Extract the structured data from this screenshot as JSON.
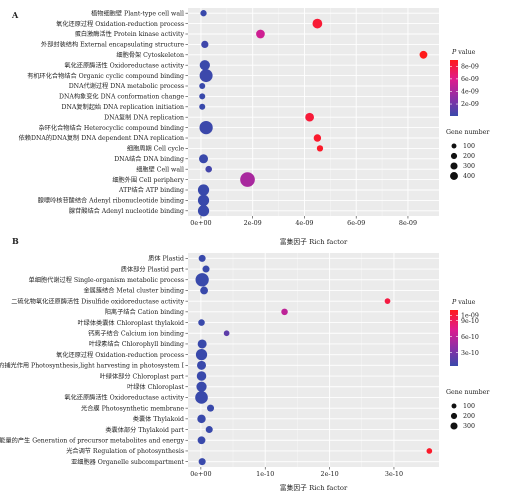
{
  "chart_data": [
    {
      "panel_label": "A",
      "type": "scatter",
      "xlabel": "富集因子 Rich factor",
      "xlim": [
        -5e-10,
        9.2e-09
      ],
      "x_ticks": [
        {
          "value": 0,
          "label": "0e+00"
        },
        {
          "value": 2e-09,
          "label": "2e-09"
        },
        {
          "value": 4e-09,
          "label": "4e-09"
        },
        {
          "value": 6e-09,
          "label": "6e-09"
        },
        {
          "value": 8e-09,
          "label": "8e-09"
        }
      ],
      "categories": [
        "植物细胞壁 Plant-type cell wall",
        "氧化还原过程 Oxidation-reduction process",
        "蛋白激酶活性 Protein kinase activity",
        "外部封装结构 External encapsulating structure",
        "细胞骨架 Cytoskeleton",
        "氧化还原酶活性 Oxidoreductase activity",
        "有机环化合物结合 Organic cyclic compound binding",
        "DNA代谢过程 DNA metabolic process",
        "DNA构象变化 DNA conformation change",
        "DNA复制起始 DNA replication initiation",
        "DNA复制 DNA replication",
        "杂环化合物结合 Heterocyclic compound binding",
        "依赖DNA的DNA复制 DNA dependent DNA replication",
        "细胞周期 Cell cycle",
        "DNA结合 DNA binding",
        "细胞壁 Cell wall",
        "细胞外围 Cell periphery",
        "ATP结合 ATP binding",
        "腺嘌呤核苷酸结合 Adenyl ribonucleotide binding",
        "腺苷酸结合 Adenyl nucleotide binding"
      ],
      "points": [
        {
          "x": 1e-10,
          "gene_number": 25,
          "p_value": 1e-10
        },
        {
          "x": 4.5e-09,
          "gene_number": 130,
          "p_value": 8.3e-09
        },
        {
          "x": 2.3e-09,
          "gene_number": 90,
          "p_value": 5.4e-09
        },
        {
          "x": 1.5e-10,
          "gene_number": 45,
          "p_value": 3e-10
        },
        {
          "x": 8.6e-09,
          "gene_number": 60,
          "p_value": 9e-09
        },
        {
          "x": 1.5e-10,
          "gene_number": 150,
          "p_value": 1.5e-10
        },
        {
          "x": 2e-10,
          "gene_number": 300,
          "p_value": 2e-10
        },
        {
          "x": 5e-11,
          "gene_number": 20,
          "p_value": 1e-10
        },
        {
          "x": 5e-11,
          "gene_number": 20,
          "p_value": 1e-10
        },
        {
          "x": 5e-11,
          "gene_number": 20,
          "p_value": 1e-10
        },
        {
          "x": 4.2e-09,
          "gene_number": 90,
          "p_value": 8.2e-09
        },
        {
          "x": 2e-10,
          "gene_number": 320,
          "p_value": 2e-10
        },
        {
          "x": 4.5e-09,
          "gene_number": 50,
          "p_value": 8.5e-09
        },
        {
          "x": 4.6e-09,
          "gene_number": 25,
          "p_value": 8.6e-09
        },
        {
          "x": 1e-10,
          "gene_number": 100,
          "p_value": 1.5e-10
        },
        {
          "x": 3e-10,
          "gene_number": 30,
          "p_value": 5e-10
        },
        {
          "x": 1.8e-09,
          "gene_number": 420,
          "p_value": 4e-09
        },
        {
          "x": 1e-10,
          "gene_number": 200,
          "p_value": 1e-10
        },
        {
          "x": 1e-10,
          "gene_number": 200,
          "p_value": 1e-10
        },
        {
          "x": 1e-10,
          "gene_number": 200,
          "p_value": 1e-10
        }
      ],
      "color_legend": {
        "title": "P value",
        "range": [
          1e-10,
          9e-09
        ],
        "ticks": [
          {
            "value": 2e-09,
            "label": "2e-09"
          },
          {
            "value": 4e-09,
            "label": "4e-09"
          },
          {
            "value": 6e-09,
            "label": "6e-09"
          },
          {
            "value": 8e-09,
            "label": "8e-09"
          }
        ],
        "low_color": "#3949ab",
        "high_color": "#ff1a1a"
      },
      "size_legend": {
        "title": "Gene number",
        "values": [
          100,
          200,
          300,
          400
        ]
      },
      "legend_position": "right",
      "grid": true
    },
    {
      "panel_label": "B",
      "type": "scatter",
      "xlabel": "富集因子 Rich factor",
      "xlim": [
        -2e-11,
        3.7e-10
      ],
      "x_ticks": [
        {
          "value": 0,
          "label": "0e+00"
        },
        {
          "value": 1e-10,
          "label": "1e-10"
        },
        {
          "value": 2e-10,
          "label": "2e-10"
        },
        {
          "value": 3e-10,
          "label": "3e-10"
        }
      ],
      "categories": [
        "质体 Plastid",
        "质体部分 Plastid part",
        "单细胞代谢过程 Single-organism metabolic process",
        "金属簇结合 Metal cluster binding",
        "二硫化物氧化还原酶活性 Disulfide oxidoreductase activity",
        "阳离子结合 Cation binding",
        "叶绿体类囊体 Chloroplast thylakoid",
        "钙离子结合 Calcium ion binding",
        "叶绿素结合 Chlorophyll binding",
        "氧化还原过程 Oxidation-reduction process",
        "光合作用,光系统Ⅰ的捕光作用 Photosynthesis,light harvesting in photosystem Ⅰ",
        "叶绿体部分 Chloroplast part",
        "叶绿体 Chloroplast",
        "氧化还原酶活性 Oxidoreductase activity",
        "光合膜 Photosynthetic membrane",
        "类囊体 Thylakoid",
        "类囊体部分 Thylakoid part",
        "前体代谢产物和能量的产生 Generation of precursor metabolites and energy",
        "光合调节 Regulation of photosynthesis",
        "亚细胞器 Organelle subcompartment"
      ],
      "points": [
        {
          "x": 2e-12,
          "gene_number": 40,
          "p_value": 5e-11
        },
        {
          "x": 8e-12,
          "gene_number": 40,
          "p_value": 5e-11
        },
        {
          "x": 2e-12,
          "gene_number": 320,
          "p_value": 5e-11
        },
        {
          "x": 5e-12,
          "gene_number": 60,
          "p_value": 5e-11
        },
        {
          "x": 2.9e-10,
          "gene_number": 15,
          "p_value": 9.8e-10
        },
        {
          "x": 1.3e-10,
          "gene_number": 30,
          "p_value": 6e-10
        },
        {
          "x": 1e-12,
          "gene_number": 30,
          "p_value": 5e-11
        },
        {
          "x": 4e-11,
          "gene_number": 15,
          "p_value": 2e-10
        },
        {
          "x": 2e-12,
          "gene_number": 100,
          "p_value": 5e-11
        },
        {
          "x": 1e-12,
          "gene_number": 200,
          "p_value": 5e-11
        },
        {
          "x": 1e-12,
          "gene_number": 100,
          "p_value": 5e-11
        },
        {
          "x": 1e-12,
          "gene_number": 120,
          "p_value": 5e-11
        },
        {
          "x": 1e-12,
          "gene_number": 150,
          "p_value": 5e-11
        },
        {
          "x": 1e-12,
          "gene_number": 280,
          "p_value": 5e-11
        },
        {
          "x": 1.5e-11,
          "gene_number": 40,
          "p_value": 5e-11
        },
        {
          "x": 1e-12,
          "gene_number": 80,
          "p_value": 5e-11
        },
        {
          "x": 1.3e-11,
          "gene_number": 40,
          "p_value": 5e-11
        },
        {
          "x": 1e-12,
          "gene_number": 60,
          "p_value": 5e-11
        },
        {
          "x": 3.55e-10,
          "gene_number": 15,
          "p_value": 1.05e-09
        },
        {
          "x": 2e-12,
          "gene_number": 40,
          "p_value": 5e-11
        }
      ],
      "color_legend": {
        "title": "P value",
        "range": [
          5e-11,
          1.1e-09
        ],
        "ticks": [
          {
            "value": 3e-10,
            "label": "3e-10"
          },
          {
            "value": 6e-10,
            "label": "6e-10"
          },
          {
            "value": 9e-10,
            "label": "9e-10"
          },
          {
            "value": 1e-09,
            "label": "1e-09"
          }
        ],
        "low_color": "#3949ab",
        "high_color": "#ff1a1a"
      },
      "size_legend": {
        "title": "Gene number",
        "values": [
          100,
          200,
          300
        ]
      },
      "legend_position": "right",
      "grid": true
    }
  ]
}
